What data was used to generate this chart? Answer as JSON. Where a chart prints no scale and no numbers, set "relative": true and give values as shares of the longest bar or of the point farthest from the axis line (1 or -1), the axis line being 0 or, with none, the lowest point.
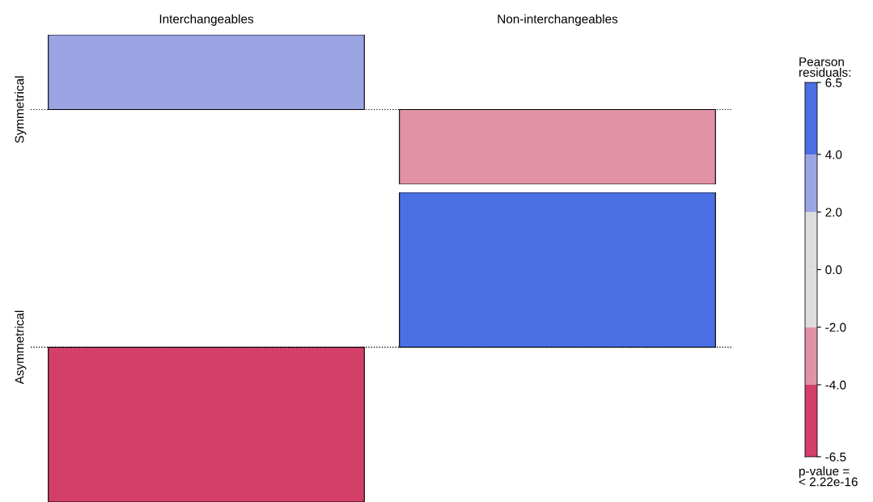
{
  "chart_data": [
    {
      "type": "bar",
      "relative": true,
      "categories": [
        "Interchangeables",
        "Non-interchangeables"
      ],
      "ylabel": "Symmetrical",
      "tick_labels": "x",
      "colors": [
        "#9ba5e3",
        "#e192a5"
      ],
      "values": [
        1,
        -1
      ],
      "ref_lines": [
        {
          "axis": "y",
          "value": 0,
          "line_style": "dotted",
          "color": "#000000"
        }
      ],
      "clabel": "Pearson\nresiduals:",
      "clim": [
        -6.5,
        6.5
      ],
      "cticks": [
        -6.5,
        {
          "value": -4,
          "label": "-4.0"
        },
        {
          "value": -2,
          "label": "-2.0"
        },
        {
          "value": 0,
          "label": "0.0"
        },
        {
          "value": 2,
          "label": "2.0"
        },
        {
          "value": 4,
          "label": "4.0"
        },
        6.5
      ],
      "annotations": [
        "p-value =\n< 2.22e-16"
      ]
    },
    {
      "type": "bar",
      "relative": true,
      "categories": [
        null,
        null
      ],
      "ylabel": "Asymmetrical",
      "tick_labels": false,
      "colors": [
        "#d33f69",
        "#4a70e3"
      ],
      "values": [
        -1,
        1
      ],
      "ref_lines": [
        {
          "axis": "y",
          "value": 0,
          "line_style": "dotted",
          "color": "#000000"
        }
      ]
    }
  ]
}
